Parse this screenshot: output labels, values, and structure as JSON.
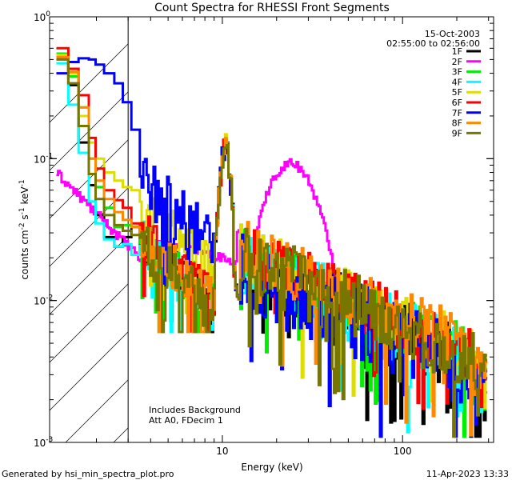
{
  "chart_data": {
    "type": "line",
    "title": "Count Spectra for RHESSI Front Segments",
    "xlabel": "Energy (keV)",
    "ylabel_prefix": "counts cm",
    "ylabel_full": "counts cm-2 s-1 keV-1",
    "x_scale": "log",
    "y_scale": "log",
    "xlim": [
      1.1,
      320
    ],
    "ylim": [
      0.001,
      1.0
    ],
    "x_ticks": [
      {
        "value": 10,
        "label": "10"
      },
      {
        "value": 100,
        "label": "100"
      }
    ],
    "y_ticks": [
      {
        "value": 1,
        "base": "10",
        "exp": "0"
      },
      {
        "value": 0.1,
        "base": "10",
        "exp": "-1"
      },
      {
        "value": 0.01,
        "base": "10",
        "exp": "-2"
      },
      {
        "value": 0.001,
        "base": "10",
        "exp": "-3"
      }
    ],
    "date": "15-Oct-2003",
    "time_range": "02:55:00 to 02:56:00",
    "annotation_line1": "Includes Background",
    "annotation_line2": "Att A0, FDecim 1",
    "shaded_region": {
      "x_min": 1.1,
      "x_max": 3.0
    },
    "series": [
      {
        "name": "1F",
        "color": "#000000",
        "ratio": 0.4,
        "extra": 0.0,
        "noise": 0.35,
        "low": [
          0.52,
          0.33,
          0.13,
          0.065,
          0.04,
          0.028,
          0.024,
          0.028,
          0.033,
          0.027
        ],
        "sat": 0.0
      },
      {
        "name": "2F",
        "color": "#ff00ff",
        "ratio": 0.0,
        "extra": 0.0,
        "noise": 0.15,
        "low": [
          0.076,
          0.055,
          0.043,
          0.03,
          0.025,
          0.022,
          0.02,
          0.021,
          0.022,
          0.03
        ],
        "sat": 1.0
      },
      {
        "name": "3F",
        "color": "#00ee00",
        "ratio": 0.6,
        "extra": 0.0,
        "noise": 0.3,
        "low": [
          0.55,
          0.38,
          0.23,
          0.1,
          0.063,
          0.045,
          0.033,
          0.034,
          0.033,
          0.028
        ],
        "sat": 0.0
      },
      {
        "name": "4F",
        "color": "#00ffff",
        "ratio": 0.45,
        "extra": 0.0,
        "noise": 0.35,
        "low": [
          0.47,
          0.24,
          0.11,
          0.05,
          0.035,
          0.027,
          0.024,
          0.025,
          0.021,
          0.026
        ],
        "sat": 0.0
      },
      {
        "name": "5F",
        "color": "#dddd00",
        "ratio": 0.7,
        "extra": 0.0,
        "noise": 0.3,
        "low": [
          0.54,
          0.4,
          0.2,
          0.13,
          0.1,
          0.08,
          0.07,
          0.063,
          0.06,
          0.051
        ],
        "sat": 0.0
      },
      {
        "name": "6F",
        "color": "#ff0000",
        "ratio": 0.7,
        "extra": 0.0,
        "noise": 0.3,
        "low": [
          0.6,
          0.43,
          0.28,
          0.14,
          0.085,
          0.06,
          0.051,
          0.045,
          0.035,
          0.031
        ],
        "sat": 0.0
      },
      {
        "name": "7F",
        "color": "#0000ff",
        "ratio": 0.3,
        "extra": 0.0,
        "noise": 0.4,
        "low": [
          0.4,
          0.48,
          0.51,
          0.5,
          0.46,
          0.4,
          0.34,
          0.25,
          0.16,
          0.07
        ],
        "sat": 0.0
      },
      {
        "name": "8F",
        "color": "#ff8800",
        "ratio": 0.8,
        "extra": 0.0,
        "noise": 0.3,
        "low": [
          0.52,
          0.41,
          0.23,
          0.1,
          0.07,
          0.052,
          0.042,
          0.037,
          0.033,
          0.028
        ],
        "sat": 0.0
      },
      {
        "name": "9F",
        "color": "#777700",
        "ratio": 0.55,
        "extra": 0.0,
        "noise": 0.35,
        "low": [
          0.5,
          0.34,
          0.17,
          0.078,
          0.052,
          0.04,
          0.034,
          0.031,
          0.029,
          0.024
        ],
        "sat": 0.0
      }
    ]
  },
  "footer": {
    "generated_by": "Generated by hsi_min_spectra_plot.pro",
    "timestamp": "11-Apr-2023 13:33"
  }
}
